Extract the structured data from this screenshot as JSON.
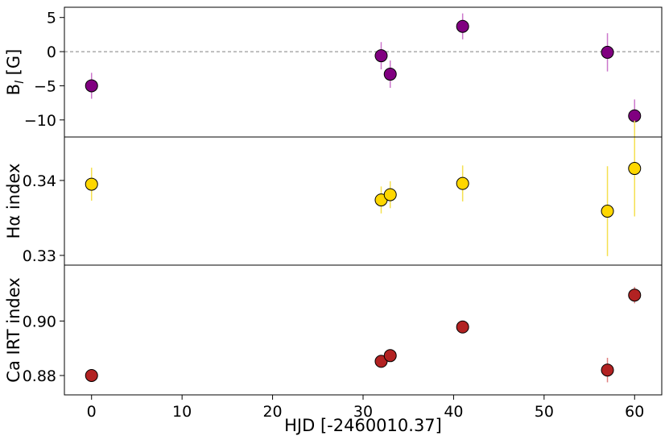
{
  "chart_data": {
    "type": "scatter",
    "xlabel": "HJD [-2460010.37]",
    "xlim": [
      -3,
      63
    ],
    "xticks": [
      0,
      10,
      20,
      30,
      40,
      50,
      60
    ],
    "panels": [
      {
        "ylabel_main": "B",
        "ylabel_sub": "l",
        "ylabel_rest": " [G]",
        "ylim": [
          -12.5,
          6.5
        ],
        "yticks": [
          5,
          0,
          -5,
          -10
        ],
        "ytick_labels": [
          "5",
          "0",
          "−5",
          "−10"
        ],
        "zero_line": true,
        "color": "#800080",
        "errcolor": "#cc77cc",
        "points": [
          {
            "x": 0,
            "y": -5.0,
            "err": 1.9
          },
          {
            "x": 32,
            "y": -0.6,
            "err": 2.0
          },
          {
            "x": 33,
            "y": -3.3,
            "err": 2.0
          },
          {
            "x": 41,
            "y": 3.7,
            "err": 1.9
          },
          {
            "x": 57,
            "y": -0.1,
            "err": 2.8
          },
          {
            "x": 60,
            "y": -9.4,
            "err": 2.4
          }
        ]
      },
      {
        "ylabel_main": "Hα index",
        "ylim": [
          0.3287,
          0.3458
        ],
        "yticks": [
          0.34,
          0.33
        ],
        "ytick_labels": [
          "0.34",
          "0.33"
        ],
        "color": "#ffd700",
        "errcolor": "#f5e050",
        "points": [
          {
            "x": 0,
            "y": 0.3395,
            "err": 0.0022
          },
          {
            "x": 32,
            "y": 0.3374,
            "err": 0.0018
          },
          {
            "x": 33,
            "y": 0.3381,
            "err": 0.0018
          },
          {
            "x": 41,
            "y": 0.3396,
            "err": 0.0024
          },
          {
            "x": 57,
            "y": 0.3359,
            "err": 0.006
          },
          {
            "x": 60,
            "y": 0.3416,
            "err": 0.0064
          }
        ]
      },
      {
        "ylabel_main": "Ca IRT index",
        "ylim": [
          0.8729,
          0.9205
        ],
        "yticks": [
          0.9,
          0.88
        ],
        "ytick_labels": [
          "0.90",
          "0.88"
        ],
        "color": "#b22222",
        "errcolor": "#e08080",
        "points": [
          {
            "x": 0,
            "y": 0.88,
            "err": 0.0013
          },
          {
            "x": 32,
            "y": 0.8852,
            "err": 0.0013
          },
          {
            "x": 33,
            "y": 0.8873,
            "err": 0.0013
          },
          {
            "x": 41,
            "y": 0.8978,
            "err": 0.002
          },
          {
            "x": 57,
            "y": 0.882,
            "err": 0.0045
          },
          {
            "x": 60,
            "y": 0.9095,
            "err": 0.003
          }
        ]
      }
    ]
  }
}
